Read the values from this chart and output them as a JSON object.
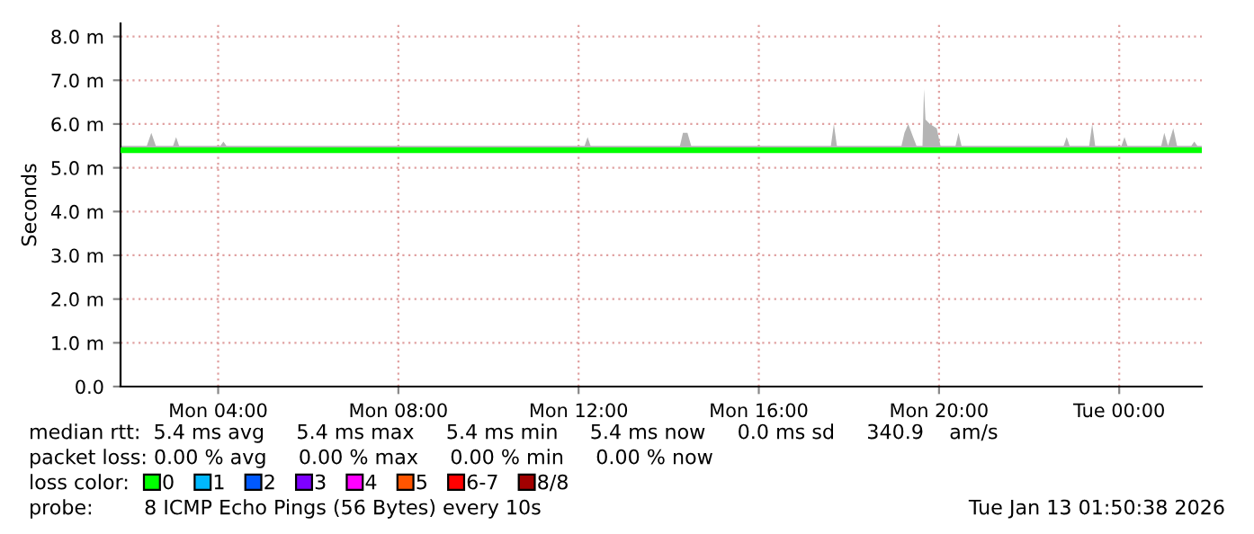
{
  "chart_data": {
    "type": "line",
    "ylabel": "Seconds",
    "xlim": [
      "2026-01-12T01:50",
      "2026-01-13T01:50"
    ],
    "xticks": [
      {
        "value": "2026-01-12T04:00",
        "label": "Mon 04:00"
      },
      {
        "value": "2026-01-12T08:00",
        "label": "Mon 08:00"
      },
      {
        "value": "2026-01-12T12:00",
        "label": "Mon 12:00"
      },
      {
        "value": "2026-01-12T16:00",
        "label": "Mon 16:00"
      },
      {
        "value": "2026-01-12T20:00",
        "label": "Mon 20:00"
      },
      {
        "value": "2026-01-13T00:00",
        "label": "Tue 00:00"
      }
    ],
    "ylim": [
      0,
      8.3
    ],
    "yticks": [
      {
        "value": 0,
        "label": "0.0"
      },
      {
        "value": 1,
        "label": "1.0 m"
      },
      {
        "value": 2,
        "label": "2.0 m"
      },
      {
        "value": 3,
        "label": "3.0 m"
      },
      {
        "value": 4,
        "label": "4.0 m"
      },
      {
        "value": 5,
        "label": "5.0 m"
      },
      {
        "value": 6,
        "label": "6.0 m"
      },
      {
        "value": 7,
        "label": "7.0 m"
      },
      {
        "value": 8,
        "label": "8.0 m"
      }
    ],
    "grid": true,
    "legend": "bottom",
    "legend_title": "loss color:",
    "series": [
      {
        "color": "#00ff00",
        "x": [
          "2026-01-12T01:50",
          "2026-01-12T02:25",
          "2026-01-12T02:31",
          "2026-01-12T02:37",
          "2026-01-12T03:00",
          "2026-01-12T03:04",
          "2026-01-12T03:08",
          "2026-01-12T04:03",
          "2026-01-12T04:07",
          "2026-01-12T04:11",
          "2026-01-12T12:08",
          "2026-01-12T12:12",
          "2026-01-12T12:16",
          "2026-01-12T14:15",
          "2026-01-12T14:19",
          "2026-01-12T14:25",
          "2026-01-12T14:30",
          "2026-01-12T17:36",
          "2026-01-12T17:40",
          "2026-01-12T17:44",
          "2026-01-12T19:10",
          "2026-01-12T19:14",
          "2026-01-12T19:19",
          "2026-01-12T19:30",
          "2026-01-12T19:38",
          "2026-01-12T19:40",
          "2026-01-12T19:42",
          "2026-01-12T19:48",
          "2026-01-12T19:57",
          "2026-01-12T20:02",
          "2026-01-12T20:22",
          "2026-01-12T20:26",
          "2026-01-12T20:30",
          "2026-01-12T22:46",
          "2026-01-12T22:50",
          "2026-01-12T22:54",
          "2026-01-12T23:20",
          "2026-01-12T23:24",
          "2026-01-12T23:28",
          "2026-01-13T00:03",
          "2026-01-13T00:07",
          "2026-01-13T00:11",
          "2026-01-13T00:56",
          "2026-01-13T01:00",
          "2026-01-13T01:05",
          "2026-01-13T01:12",
          "2026-01-13T01:17",
          "2026-01-13T01:36",
          "2026-01-13T01:40",
          "2026-01-13T01:44",
          "2026-01-13T01:50"
        ],
        "values": [
          5.4,
          5.4,
          5.4,
          5.4,
          5.4,
          5.4,
          5.4,
          5.4,
          5.4,
          5.4,
          5.4,
          5.4,
          5.4,
          5.4,
          5.4,
          5.4,
          5.4,
          5.4,
          5.4,
          5.4,
          5.4,
          5.4,
          5.4,
          5.4,
          5.4,
          5.4,
          5.4,
          5.4,
          5.4,
          5.4,
          5.4,
          5.4,
          5.4,
          5.4,
          5.4,
          5.4,
          5.4,
          5.4,
          5.4,
          5.4,
          5.4,
          5.4,
          5.4,
          5.4,
          5.4,
          5.4,
          5.4,
          5.4,
          5.4,
          5.4,
          5.4
        ],
        "lower": [
          5.4,
          5.4,
          5.4,
          5.4,
          5.4,
          5.4,
          5.4,
          5.4,
          5.4,
          5.4,
          5.4,
          5.4,
          5.4,
          5.4,
          5.4,
          5.4,
          5.4,
          5.4,
          5.4,
          5.4,
          5.4,
          5.4,
          5.4,
          5.4,
          5.4,
          5.4,
          5.4,
          5.4,
          5.4,
          5.4,
          5.4,
          5.4,
          5.4,
          5.4,
          5.4,
          5.4,
          5.4,
          5.4,
          5.4,
          5.4,
          5.4,
          5.4,
          5.4,
          5.4,
          5.4,
          5.4,
          5.4,
          5.4,
          5.4,
          5.4,
          5.4
        ],
        "upper": [
          5.5,
          5.5,
          5.8,
          5.5,
          5.5,
          5.7,
          5.5,
          5.5,
          5.6,
          5.5,
          5.5,
          5.7,
          5.5,
          5.5,
          5.8,
          5.8,
          5.5,
          5.5,
          6.0,
          5.5,
          5.5,
          5.8,
          6.0,
          5.5,
          5.5,
          6.8,
          6.1,
          6.0,
          5.9,
          5.5,
          5.5,
          5.8,
          5.5,
          5.5,
          5.7,
          5.5,
          5.5,
          6.0,
          5.5,
          5.5,
          5.7,
          5.5,
          5.5,
          5.8,
          5.5,
          5.9,
          5.5,
          5.5,
          5.6,
          5.5,
          5.5
        ]
      },
      {
        "name": "0",
        "color": "#00ff00"
      },
      {
        "name": "1",
        "color": "#00b8ff"
      },
      {
        "name": "2",
        "color": "#0059ff"
      },
      {
        "name": "3",
        "color": "#7e00ff"
      },
      {
        "name": "4",
        "color": "#ff00ff"
      },
      {
        "name": "5",
        "color": "#ff5500"
      },
      {
        "name": "6-7",
        "color": "#ff0000"
      },
      {
        "name": "8/8",
        "color": "#a10000"
      }
    ],
    "annotations": [
      "median rtt:  5.4 ms avg     5.4 ms max     5.4 ms min     5.4 ms now     0.0 ms sd     340.9    am/s",
      "packet loss: 0.00 % avg     0.00 % max     0.00 % min     0.00 % now",
      "probe:        8 ICMP Echo Pings (56 Bytes) every 10s",
      "Tue Jan 13 01:50:38 2026"
    ]
  }
}
